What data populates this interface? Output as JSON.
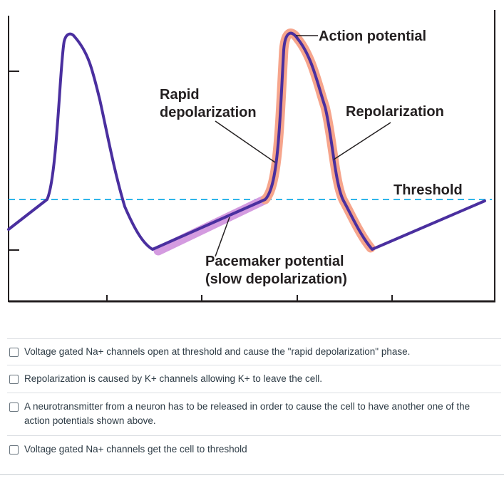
{
  "figure": {
    "labels": {
      "action_potential": "Action potential",
      "rapid_line1": "Rapid",
      "rapid_line2": "depolarization",
      "repolarization": "Repolarization",
      "threshold": "Threshold",
      "pacemaker_line1": "Pacemaker potential",
      "pacemaker_line2": "(slow depolarization)"
    },
    "colors": {
      "trace": "#4a2f9f",
      "action_potential_highlight": "#f6a58c",
      "pacemaker_highlight": "#d49be0",
      "threshold_line": "#2fb5ea",
      "axis": "#231f20"
    }
  },
  "question": {
    "options": [
      {
        "text": "Voltage gated Na+ channels open at threshold and cause the \"rapid depolarization\" phase.",
        "checked": false
      },
      {
        "text": "Repolarization is caused by K+ channels allowing K+ to leave the cell.",
        "checked": false
      },
      {
        "text": "A neurotransmitter from a neuron has to be released in order to cause the cell to have another one of the action potentials shown above.",
        "checked": false
      },
      {
        "text": "Voltage gated Na+ channels get the cell to threshold",
        "checked": false
      }
    ]
  }
}
